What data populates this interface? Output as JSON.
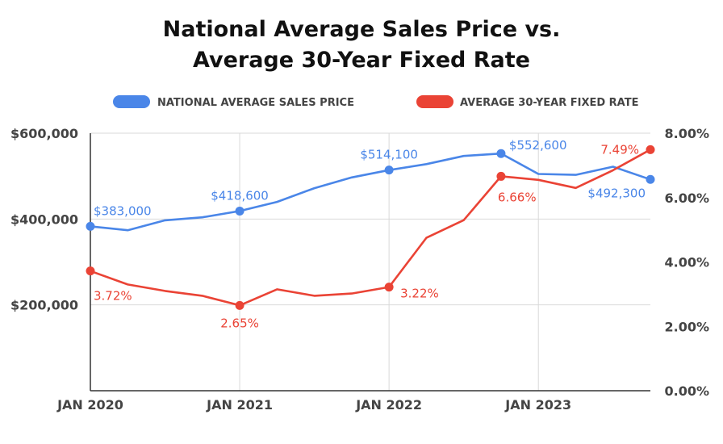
{
  "chart_data": {
    "type": "line",
    "title_line1": "National Average Sales Price vs.",
    "title_line2": "Average 30-Year Fixed Rate",
    "legend": {
      "placement": "top-center",
      "items": [
        {
          "label": "NATIONAL AVERAGE SALES PRICE",
          "color": "#4a86e8"
        },
        {
          "label": "AVERAGE 30-YEAR FIXED RATE",
          "color": "#ea4335"
        }
      ]
    },
    "x_axis": {
      "ticks": [
        {
          "label": "JAN 2020",
          "value": 0
        },
        {
          "label": "JAN 2021",
          "value": 4
        },
        {
          "label": "JAN 2022",
          "value": 8
        },
        {
          "label": "JAN 2023",
          "value": 12
        }
      ],
      "range": [
        0,
        15
      ],
      "unit": "quarter"
    },
    "y_left": {
      "ticks": [
        "$200,000",
        "$400,000",
        "$600,000"
      ],
      "tick_values": [
        200000,
        400000,
        600000
      ],
      "range": [
        0,
        600000
      ]
    },
    "y_right": {
      "ticks": [
        "0.00%",
        "2.00%",
        "4.00%",
        "6.00%",
        "8.00%"
      ],
      "tick_values": [
        0,
        2,
        4,
        6,
        8
      ],
      "range": [
        0,
        8
      ]
    },
    "grid": {
      "horizontal": true,
      "vertical": true
    },
    "series": [
      {
        "name": "NATIONAL AVERAGE SALES PRICE",
        "axis": "left",
        "color": "#4a86e8",
        "x": [
          0,
          1,
          2,
          3,
          4,
          5,
          6,
          7,
          8,
          9,
          10,
          11,
          12,
          13,
          14,
          15
        ],
        "values": [
          383000,
          374000,
          397000,
          404000,
          418600,
          440000,
          472000,
          497000,
          514100,
          528000,
          547000,
          552600,
          505000,
          503000,
          522000,
          492300
        ],
        "markers": [
          {
            "index": 0,
            "label": "$383,000"
          },
          {
            "index": 4,
            "label": "$418,600"
          },
          {
            "index": 8,
            "label": "$514,100"
          },
          {
            "index": 11,
            "label": "$552,600"
          },
          {
            "index": 15,
            "label": "$492,300"
          }
        ]
      },
      {
        "name": "AVERAGE 30-YEAR FIXED RATE",
        "axis": "right",
        "color": "#ea4335",
        "x": [
          0,
          1,
          2,
          3,
          4,
          5,
          6,
          7,
          8,
          9,
          10,
          11,
          12,
          13,
          14,
          15
        ],
        "values": [
          3.72,
          3.3,
          3.1,
          2.95,
          2.65,
          3.15,
          2.95,
          3.02,
          3.22,
          4.75,
          5.3,
          6.66,
          6.55,
          6.3,
          6.85,
          7.49
        ],
        "markers": [
          {
            "index": 0,
            "label": "3.72%"
          },
          {
            "index": 4,
            "label": "2.65%"
          },
          {
            "index": 8,
            "label": "3.22%"
          },
          {
            "index": 11,
            "label": "6.66%"
          },
          {
            "index": 15,
            "label": "7.49%"
          }
        ]
      }
    ]
  }
}
